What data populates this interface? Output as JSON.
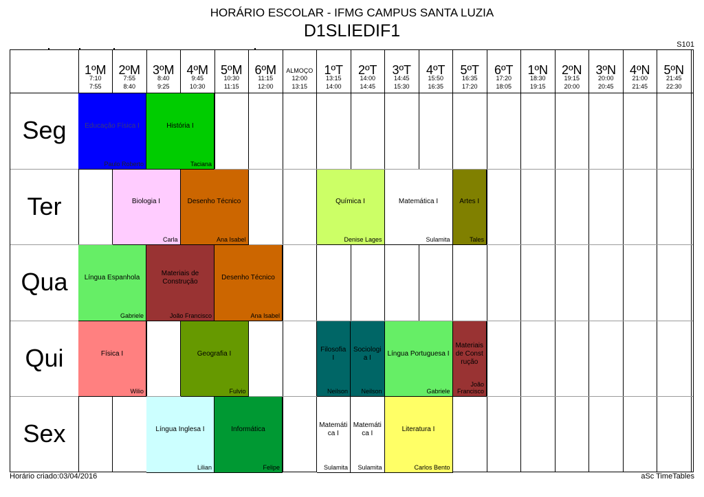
{
  "header": {
    "title": "HORÁRIO ESCOLAR - IFMG CAMPUS SANTA LUZIA",
    "class_name": "D1SLIEDIF1",
    "room": "S101"
  },
  "periods": [
    {
      "name": "1ºM",
      "start": "7:10",
      "end": "7:55"
    },
    {
      "name": "2ºM",
      "start": "7:55",
      "end": "8:40"
    },
    {
      "name": "3ºM",
      "start": "8:40",
      "end": "9:25"
    },
    {
      "name": "4ºM",
      "start": "9:45",
      "end": "10:30"
    },
    {
      "name": "5ºM",
      "start": "10:30",
      "end": "11:15"
    },
    {
      "name": "6ºM",
      "start": "11:15",
      "end": "12:00"
    },
    {
      "name": "ALMOÇO",
      "start": "12:00",
      "end": "13:15"
    },
    {
      "name": "1ºT",
      "start": "13:15",
      "end": "14:00"
    },
    {
      "name": "2ºT",
      "start": "14:00",
      "end": "14:45"
    },
    {
      "name": "3ºT",
      "start": "14:45",
      "end": "15:30"
    },
    {
      "name": "4ºT",
      "start": "15:50",
      "end": "16:35"
    },
    {
      "name": "5ºT",
      "start": "16:35",
      "end": "17:20"
    },
    {
      "name": "6ºT",
      "start": "17:20",
      "end": "18:05"
    },
    {
      "name": "1ºN",
      "start": "18:30",
      "end": "19:15"
    },
    {
      "name": "2ºN",
      "start": "19:15",
      "end": "20:00"
    },
    {
      "name": "3ºN",
      "start": "20:00",
      "end": "20:45"
    },
    {
      "name": "4ºN",
      "start": "21:00",
      "end": "21:45"
    },
    {
      "name": "5ºN",
      "start": "21:45",
      "end": "22:30"
    }
  ],
  "days": [
    "Seg",
    "Ter",
    "Qua",
    "Qui",
    "Sex"
  ],
  "lessons": [
    {
      "day": 0,
      "period": 0,
      "span": 2,
      "subject": "Educação Física I",
      "teacher": "Paulo Roberto",
      "color": "#0000ff"
    },
    {
      "day": 0,
      "period": 2,
      "span": 2,
      "subject": "História I",
      "teacher": "Taciana",
      "color": "#00cc00"
    },
    {
      "day": 1,
      "period": 1,
      "span": 2,
      "subject": "Biologia I",
      "teacher": "Carla",
      "color": "#ffccff"
    },
    {
      "day": 1,
      "period": 3,
      "span": 2,
      "subject": "Desenho Técnico",
      "teacher": "Ana Isabel",
      "color": "#cc6600"
    },
    {
      "day": 1,
      "period": 7,
      "span": 2,
      "subject": "Química I",
      "teacher": "Denise Lages",
      "color": "#ccff66"
    },
    {
      "day": 1,
      "period": 9,
      "span": 2,
      "subject": "Matemática I",
      "teacher": "Sulamita",
      "color": "#ffffff"
    },
    {
      "day": 1,
      "period": 11,
      "span": 1,
      "subject": "Artes I",
      "teacher": "Tales",
      "color": "#808000"
    },
    {
      "day": 2,
      "period": 0,
      "span": 2,
      "subject": "Língua Espanhola",
      "teacher": "Gabriele",
      "color": "#66ee66"
    },
    {
      "day": 2,
      "period": 2,
      "span": 2,
      "subject": "Materiais de Construção",
      "teacher": "João Francisco",
      "color": "#993333"
    },
    {
      "day": 2,
      "period": 4,
      "span": 2,
      "subject": "Desenho Técnico",
      "teacher": "Ana Isabel",
      "color": "#cc6600"
    },
    {
      "day": 3,
      "period": 0,
      "span": 2,
      "subject": "Física I",
      "teacher": "Wilio",
      "color": "#ff8080"
    },
    {
      "day": 3,
      "period": 3,
      "span": 2,
      "subject": "Geografia I",
      "teacher": "Fulvio",
      "color": "#669900"
    },
    {
      "day": 3,
      "period": 7,
      "span": 1,
      "subject": "Filosofia I",
      "teacher": "Neilson",
      "color": "#006666"
    },
    {
      "day": 3,
      "period": 8,
      "span": 1,
      "subject": "Sociologia I",
      "teacher": "Neilson",
      "color": "#006666"
    },
    {
      "day": 3,
      "period": 9,
      "span": 2,
      "subject": "Língua Portuguesa I",
      "teacher": "Gabriele",
      "color": "#66ee66"
    },
    {
      "day": 3,
      "period": 11,
      "span": 1,
      "subject": "Materiais de Construção",
      "teacher": "João Francisco",
      "color": "#993333"
    },
    {
      "day": 4,
      "period": 2,
      "span": 2,
      "subject": "Língua Inglesa I",
      "teacher": "Lilian",
      "color": "#ccffff"
    },
    {
      "day": 4,
      "period": 4,
      "span": 2,
      "subject": "Informática",
      "teacher": "Felipe",
      "color": "#009933"
    },
    {
      "day": 4,
      "period": 7,
      "span": 1,
      "subject": "Matemática I",
      "teacher": "Sulamita",
      "color": "#ffffff"
    },
    {
      "day": 4,
      "period": 8,
      "span": 1,
      "subject": "Matemática I",
      "teacher": "Sulamita",
      "color": "#ffffff"
    },
    {
      "day": 4,
      "period": 9,
      "span": 2,
      "subject": "Literatura I",
      "teacher": "Carlos Bento",
      "color": "#ffff66"
    }
  ],
  "footer": {
    "created": "Horário criado:03/04/2016",
    "software": "aSc TimeTables"
  }
}
